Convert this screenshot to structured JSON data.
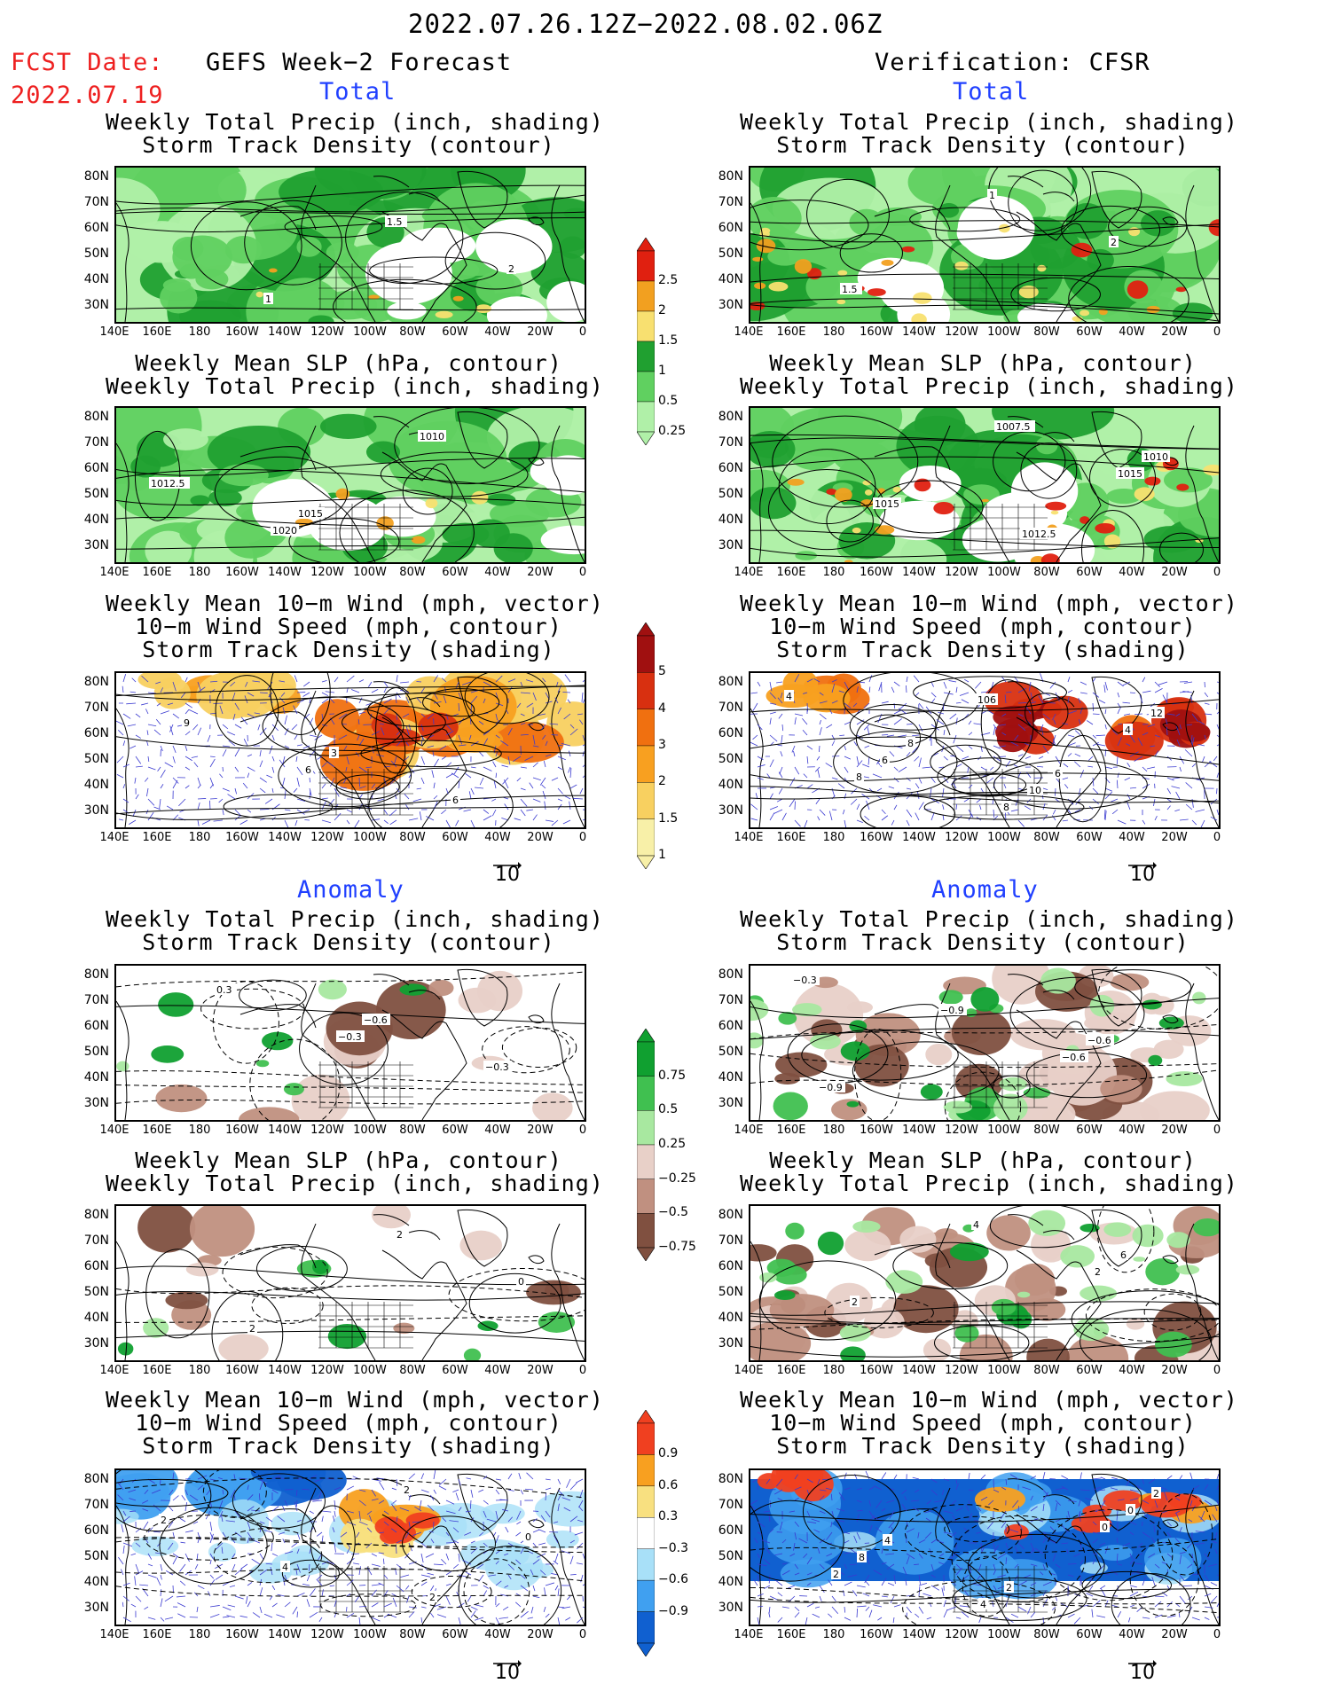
{
  "header": {
    "date_range": "2022.07.26.12Z−2022.08.02.06Z",
    "fcst_label": "FCST Date:",
    "fcst_date": "2022.07.19",
    "left_title": "GEFS Week−2 Forecast",
    "right_title": "Verification: CFSR",
    "section_total": "Total",
    "section_anomaly": "Anomaly"
  },
  "panel_titles": {
    "precip_storm": [
      "Weekly Total Precip (inch, shading)",
      "Storm Track Density (contour)"
    ],
    "slp_precip": [
      "Weekly Mean SLP (hPa, contour)",
      "Weekly Total Precip (inch, shading)"
    ],
    "wind_storm": [
      "Weekly Mean 10−m Wind (mph, vector)",
      "10−m Wind Speed (mph, contour)",
      "Storm Track Density (shading)"
    ]
  },
  "axes": {
    "lat_labels": [
      "80N",
      "70N",
      "60N",
      "50N",
      "40N",
      "30N"
    ],
    "lon_labels": [
      "140E",
      "160E",
      "180",
      "160W",
      "140W",
      "120W",
      "100W",
      "80W",
      "60W",
      "40W",
      "20W",
      "0"
    ]
  },
  "vector_reference": "10",
  "colorbars": {
    "total_precip": {
      "labels": [
        "2.5",
        "2",
        "1.5",
        "1",
        "0.5",
        "0.25"
      ],
      "colors": [
        "#e02010",
        "#f2a020",
        "#f8e070",
        "#20a030",
        "#60d060",
        "#b0f0a8"
      ]
    },
    "total_storm": {
      "labels": [
        "5",
        "4",
        "3",
        "2",
        "1.5",
        "1"
      ],
      "colors": [
        "#a01010",
        "#d83010",
        "#f07010",
        "#f8a020",
        "#f8d060",
        "#f8f0a8"
      ]
    },
    "anom_precip": {
      "labels": [
        "0.75",
        "0.5",
        "0.25",
        "−0.25",
        "−0.5",
        "−0.75"
      ],
      "colors": [
        "#10a030",
        "#40c050",
        "#a8e8a0",
        "#e8d0c8",
        "#c09080",
        "#805040"
      ]
    },
    "anom_storm": {
      "labels": [
        "0.9",
        "0.6",
        "0.3",
        "−0.3",
        "−0.6",
        "−0.9"
      ],
      "colors": [
        "#f04020",
        "#f8a020",
        "#f8e080",
        "#ffffff",
        "#a8e0f8",
        "#40a0f0",
        "#1060d0"
      ]
    }
  },
  "contour_labels": {
    "total_fcst_precip": [
      "1",
      "1.5",
      "2"
    ],
    "total_fcst_slp": [
      "1015",
      "1010",
      "1012.5",
      "1020"
    ],
    "total_fcst_wind": [
      "3",
      "6",
      "9",
      "6"
    ],
    "total_verif_precip": [
      "1",
      "2",
      "1.5"
    ],
    "total_verif_slp": [
      "1012.5",
      "1010",
      "1015",
      "1007.5",
      "1015"
    ],
    "total_verif_wind": [
      "6",
      "4",
      "8",
      "10",
      "12",
      "6",
      "8",
      "4",
      "8",
      "106"
    ],
    "anom_fcst_precip": [
      "−0.6",
      "−0.3",
      "0.3",
      "−0.3"
    ],
    "anom_fcst_slp": [
      "2",
      "0",
      "2"
    ],
    "anom_fcst_wind": [
      "2",
      "2",
      "4",
      "2",
      "0"
    ],
    "anom_verif_precip": [
      "−0.6",
      "−0.9",
      "−0.9",
      "−0.6",
      "−0.3"
    ],
    "anom_verif_slp": [
      "6",
      "2",
      "4",
      "2"
    ],
    "anom_verif_wind": [
      "2",
      "4",
      "2",
      "0",
      "8",
      "4",
      "0",
      "2"
    ]
  }
}
